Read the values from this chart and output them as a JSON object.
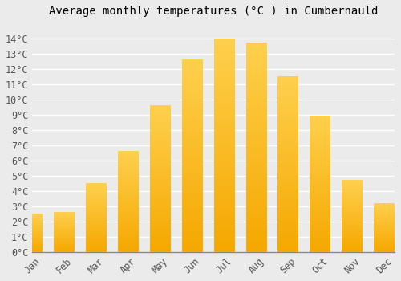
{
  "title": "Average monthly temperatures (°C ) in Cumbernauld",
  "months": [
    "Jan",
    "Feb",
    "Mar",
    "Apr",
    "May",
    "Jun",
    "Jul",
    "Aug",
    "Sep",
    "Oct",
    "Nov",
    "Dec"
  ],
  "values": [
    2.5,
    2.6,
    4.5,
    6.6,
    9.6,
    12.6,
    14.0,
    13.7,
    11.5,
    8.9,
    4.7,
    3.2
  ],
  "bar_color_light": "#FFD04D",
  "bar_color_dark": "#F5A800",
  "ylim": [
    0,
    15
  ],
  "yticks": [
    0,
    1,
    2,
    3,
    4,
    5,
    6,
    7,
    8,
    9,
    10,
    11,
    12,
    13,
    14
  ],
  "background_color": "#EBEBEB",
  "grid_color": "#FFFFFF",
  "title_fontsize": 10,
  "tick_fontsize": 8.5
}
